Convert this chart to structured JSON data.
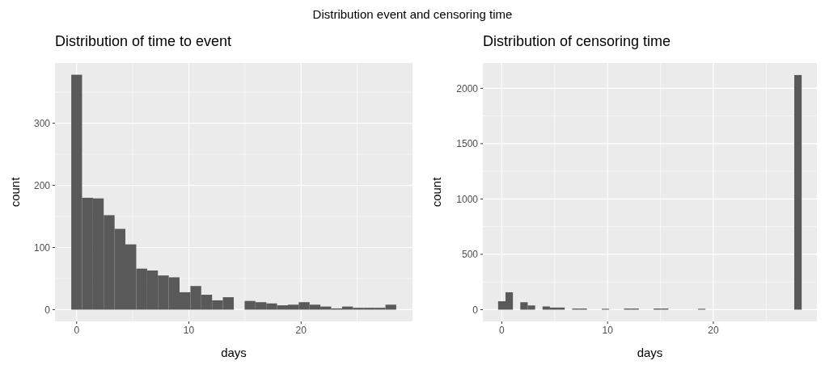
{
  "chart_data": [
    {
      "type": "histogram",
      "title": "Distribution of time to event",
      "annotations": [
        "Distribution event and censoring time"
      ],
      "xlabel": "days",
      "ylabel": "count",
      "color": "#595959",
      "bins": [
        -0.48,
        0.48,
        1.45,
        2.41,
        3.38,
        4.34,
        5.31,
        6.28,
        7.24,
        8.21,
        9.17,
        10.14,
        11.1,
        12.07,
        13.03,
        14,
        14.97,
        15.93,
        16.9,
        17.86,
        18.83,
        19.79,
        20.76,
        21.72,
        22.69,
        23.66,
        24.62,
        25.59,
        26.55,
        27.52,
        28.48
      ],
      "values": [
        378,
        180,
        179,
        152,
        130,
        105,
        66,
        63,
        55,
        52,
        28,
        38,
        24,
        15,
        20,
        0,
        14,
        12,
        10,
        7,
        8,
        12,
        8,
        5,
        2,
        5,
        3,
        3,
        3,
        8
      ],
      "xlim": [
        -1.93,
        29.93
      ],
      "xticks": [
        0,
        10,
        20
      ],
      "ylim": [
        -18.9,
        396.9
      ],
      "yticks": [
        0,
        100,
        200,
        300
      ],
      "grid": true
    },
    {
      "type": "histogram",
      "title": "Distribution of censoring time",
      "xlabel": "days",
      "ylabel": "count",
      "color": "#595959",
      "bins": [
        -0.35,
        0.35,
        1.05,
        1.75,
        2.45,
        3.15,
        3.85,
        4.55,
        5.25,
        5.95,
        6.65,
        7.35,
        8.05,
        8.75,
        9.45,
        10.15,
        10.85,
        11.55,
        12.25,
        12.95,
        13.65,
        14.35,
        15.05,
        15.75,
        16.45,
        17.15,
        17.85,
        18.55,
        19.25,
        19.95,
        20.65,
        21.35,
        22.05,
        22.75,
        23.45,
        24.15,
        24.85,
        25.55,
        26.25,
        26.95,
        27.65,
        28.35
      ],
      "values": [
        76,
        157,
        0,
        67,
        38,
        0,
        29,
        19,
        19,
        0,
        10,
        10,
        0,
        0,
        8,
        0,
        0,
        10,
        10,
        0,
        0,
        10,
        10,
        0,
        0,
        0,
        0,
        8,
        0,
        0,
        0,
        0,
        0,
        0,
        0,
        0,
        0,
        0,
        0,
        0,
        2120
      ],
      "xlim": [
        -1.79,
        29.79
      ],
      "xticks": [
        0,
        10,
        20
      ],
      "ylim": [
        -106,
        2229
      ],
      "yticks": [
        0,
        500,
        1000,
        1500,
        2000
      ],
      "grid": true
    }
  ]
}
